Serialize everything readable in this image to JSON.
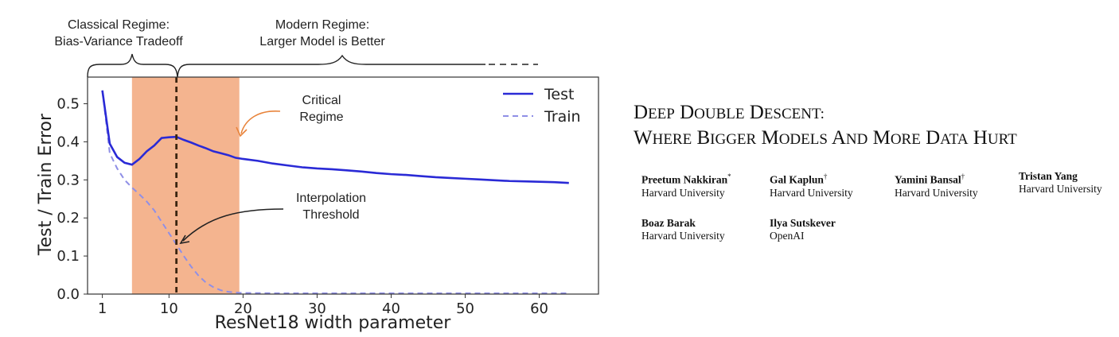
{
  "paper": {
    "title_line1": "Deep Double Descent:",
    "title_line2": "Where Bigger Models and More Data Hurt",
    "authors": [
      {
        "name": "Preetum Nakkiran",
        "mark": "*",
        "affiliation": "Harvard University"
      },
      {
        "name": "Gal Kaplun",
        "mark": "†",
        "affiliation": "Harvard University"
      },
      {
        "name": "Yamini Bansal",
        "mark": "†",
        "affiliation": "Harvard University"
      },
      {
        "name": "Tristan Yang",
        "mark": "",
        "affiliation": "Harvard University"
      },
      {
        "name": "Boaz Barak",
        "mark": "",
        "affiliation": "Harvard University"
      },
      {
        "name": "Ilya Sutskever",
        "mark": "",
        "affiliation": "OpenAI"
      }
    ]
  },
  "figure": {
    "annotations": {
      "classical_1": "Classical Regime:",
      "classical_2": "Bias-Variance Tradeoff",
      "modern_1": "Modern Regime:",
      "modern_2": "Larger Model is Better",
      "critical_1": "Critical",
      "critical_2": "Regime",
      "interp_1": "Interpolation",
      "interp_2": "Threshold"
    },
    "colors": {
      "test": "#2a2ad6",
      "train": "#8f8fe6",
      "critical_band": "#f4b48f",
      "critical_text": "#e8843c",
      "threshold_line": "#3a2410"
    }
  },
  "chart_data": {
    "type": "line",
    "xlabel": "ResNet18 width parameter",
    "ylabel": "Test / Train Error",
    "xlim": [
      -1,
      68
    ],
    "ylim": [
      0,
      0.57
    ],
    "xticks": [
      1,
      10,
      20,
      30,
      40,
      50,
      60
    ],
    "yticks": [
      0.0,
      0.1,
      0.2,
      0.3,
      0.4,
      0.5
    ],
    "legend": "top-right",
    "critical_region": [
      5,
      19.5
    ],
    "interpolation_threshold": 11,
    "series": [
      {
        "name": "Test",
        "style": "solid",
        "x": [
          1,
          2,
          3,
          4,
          5,
          6,
          7,
          8,
          9,
          10,
          11,
          12,
          13,
          14,
          15,
          16,
          17,
          18,
          19,
          20,
          22,
          24,
          26,
          28,
          30,
          32,
          34,
          36,
          38,
          40,
          42,
          44,
          46,
          48,
          50,
          52,
          54,
          56,
          58,
          60,
          62,
          64
        ],
        "values": [
          0.535,
          0.395,
          0.36,
          0.345,
          0.34,
          0.355,
          0.375,
          0.39,
          0.41,
          0.412,
          0.413,
          0.405,
          0.398,
          0.39,
          0.383,
          0.375,
          0.37,
          0.365,
          0.358,
          0.355,
          0.35,
          0.343,
          0.338,
          0.333,
          0.33,
          0.328,
          0.325,
          0.322,
          0.318,
          0.315,
          0.313,
          0.31,
          0.307,
          0.305,
          0.303,
          0.301,
          0.299,
          0.297,
          0.296,
          0.295,
          0.294,
          0.292
        ]
      },
      {
        "name": "Train",
        "style": "dashed",
        "x": [
          1,
          2,
          3,
          4,
          5,
          6,
          7,
          8,
          9,
          10,
          11,
          12,
          13,
          14,
          15,
          16,
          17,
          18,
          19,
          20,
          25,
          30,
          40,
          50,
          60,
          64
        ],
        "values": [
          0.535,
          0.37,
          0.33,
          0.3,
          0.28,
          0.262,
          0.243,
          0.22,
          0.19,
          0.16,
          0.13,
          0.1,
          0.072,
          0.048,
          0.03,
          0.018,
          0.01,
          0.006,
          0.004,
          0.003,
          0.002,
          0.002,
          0.002,
          0.002,
          0.002,
          0.002
        ]
      }
    ]
  }
}
